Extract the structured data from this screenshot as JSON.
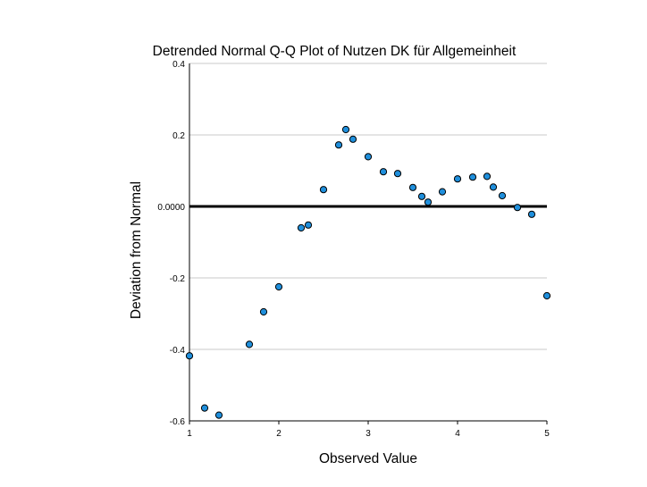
{
  "chart_data": {
    "type": "scatter",
    "title": "Detrended Normal Q-Q Plot of Nutzen DK für Allgemeinheit",
    "xlabel": "Observed Value",
    "ylabel": "Deviation from Normal",
    "xlim": [
      1,
      5
    ],
    "ylim": [
      -0.6,
      0.4
    ],
    "x_ticks": [
      1,
      2,
      3,
      4,
      5
    ],
    "x_tick_labels": [
      "1",
      "2",
      "3",
      "4",
      "5"
    ],
    "y_ticks": [
      0.4,
      0.2,
      0.0,
      -0.2,
      -0.4,
      -0.6
    ],
    "y_tick_labels": [
      "0.4",
      "0.2",
      "0.0000",
      "-0.2",
      "-0.4",
      "-0.6"
    ],
    "grid": "horizontal",
    "reference_line": 0.0,
    "point_color": "#1f8fdc",
    "x": [
      1.0,
      1.17,
      1.33,
      1.67,
      1.83,
      2.0,
      2.25,
      2.33,
      2.5,
      2.67,
      2.75,
      2.83,
      3.0,
      3.17,
      3.33,
      3.5,
      3.6,
      3.67,
      3.83,
      4.0,
      4.17,
      4.33,
      4.4,
      4.5,
      4.67,
      4.83,
      5.0
    ],
    "y": [
      -0.418,
      -0.564,
      -0.584,
      -0.386,
      -0.295,
      -0.225,
      -0.06,
      -0.052,
      0.047,
      0.172,
      0.215,
      0.188,
      0.139,
      0.097,
      0.092,
      0.053,
      0.028,
      0.012,
      0.041,
      0.077,
      0.082,
      0.084,
      0.054,
      0.03,
      -0.003,
      -0.022,
      -0.25
    ]
  }
}
